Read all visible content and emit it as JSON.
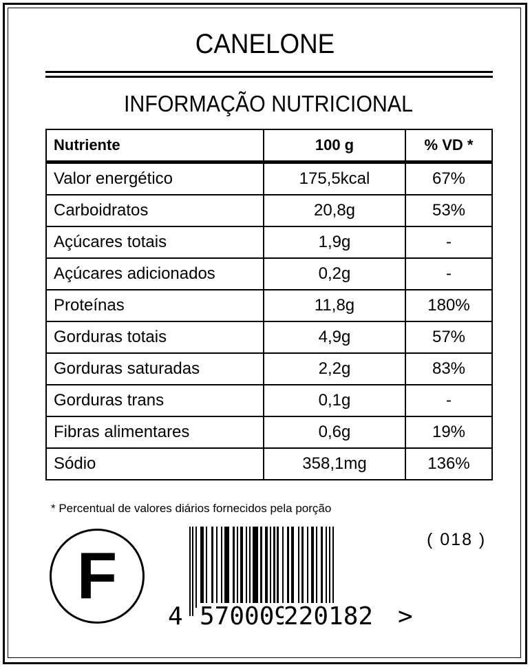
{
  "title": "CANELONE",
  "subtitle": "INFORMAÇÃO NUTRICIONAL",
  "table": {
    "headers": [
      "Nutriente",
      "100 g",
      "% VD *"
    ],
    "rows": [
      [
        "Valor energético",
        "175,5kcal",
        "67%"
      ],
      [
        "Carboidratos",
        "20,8g",
        "53%"
      ],
      [
        "Açúcares totais",
        "1,9g",
        "-"
      ],
      [
        "Açúcares adicionados",
        "0,2g",
        "-"
      ],
      [
        "Proteínas",
        "11,8g",
        "180%"
      ],
      [
        "Gorduras totais",
        "4,9g",
        "57%"
      ],
      [
        "Gorduras saturadas",
        "2,2g",
        "83%"
      ],
      [
        "Gorduras trans",
        "0,1g",
        "-"
      ],
      [
        "Fibras alimentares",
        "0,6g",
        "19%"
      ],
      [
        "Sódio",
        "358,1mg",
        "136%"
      ]
    ]
  },
  "footnote": "* Percentual de valores diários fornecidos pela porção",
  "seal_letter": "F",
  "barcode": {
    "first": "4",
    "left": "570009",
    "right": "220182",
    "end": ">",
    "number": "4570009220182"
  },
  "code": "( 018 )"
}
